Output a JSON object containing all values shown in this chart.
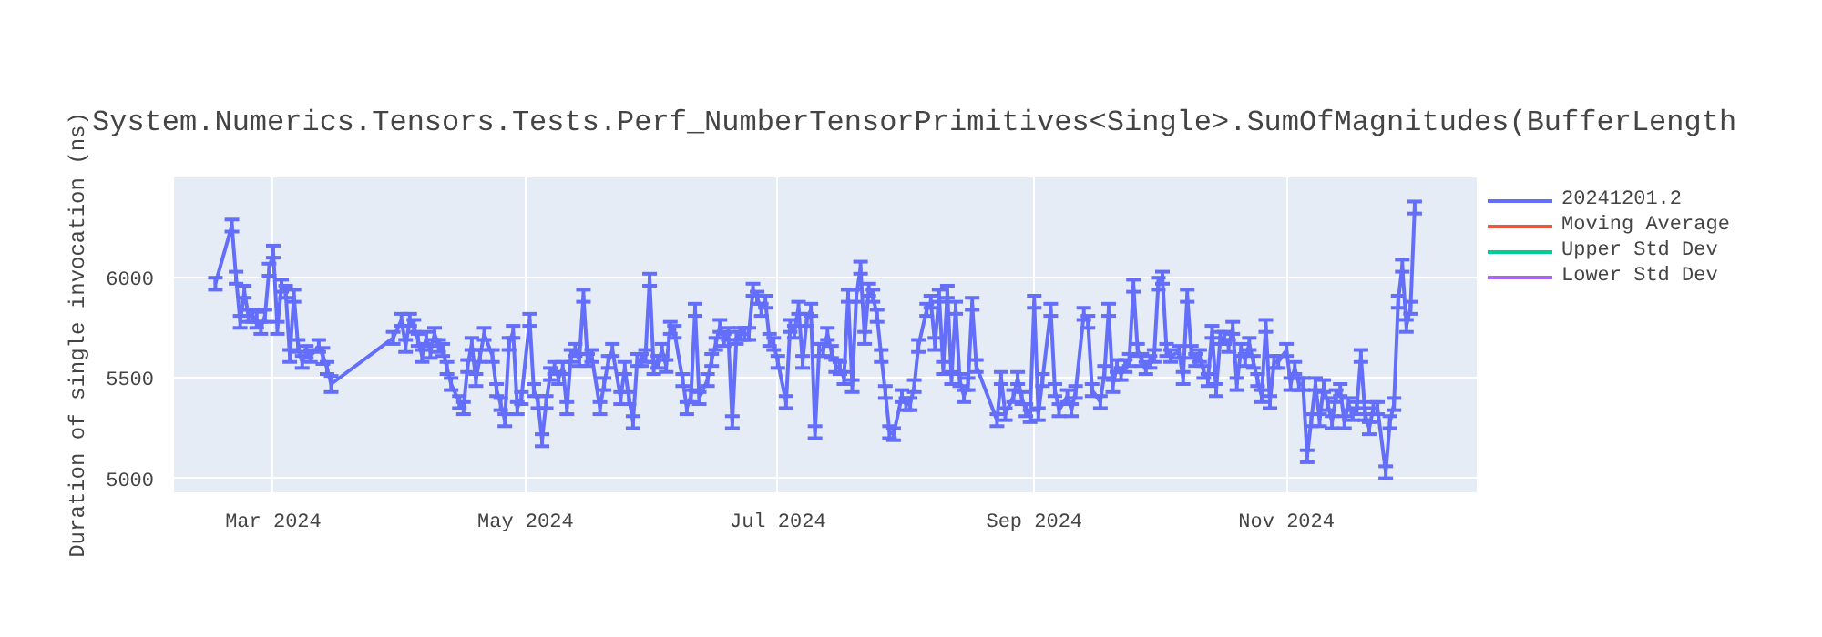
{
  "chart_data": {
    "type": "line",
    "title": "System.Numerics.Tensors.Tests.Perf_NumberTensorPrimitives<Single>.SumOfMagnitudes(BufferLength",
    "ylabel": "Duration of single invocation (ns)",
    "xlim": [
      "2024-02-06",
      "2024-12-17"
    ],
    "xticks": [
      {
        "value": "2024-03-01",
        "label": "Mar 2024"
      },
      {
        "value": "2024-05-01",
        "label": "May 2024"
      },
      {
        "value": "2024-07-01",
        "label": "Jul 2024"
      },
      {
        "value": "2024-09-01",
        "label": "Sep 2024"
      },
      {
        "value": "2024-11-01",
        "label": "Nov 2024"
      }
    ],
    "ylim": [
      4930,
      6500
    ],
    "yticks": [
      5000,
      5500,
      6000
    ],
    "grid": true,
    "legend": "top right",
    "marker": "none",
    "line_style": "solid",
    "x": [
      "2024-02-16",
      "2024-02-20",
      "2024-02-21",
      "2024-02-22",
      "2024-02-23",
      "2024-02-24",
      "2024-02-25",
      "2024-02-26",
      "2024-02-27",
      "2024-02-28",
      "2024-02-29",
      "2024-03-01",
      "2024-03-02",
      "2024-03-03",
      "2024-03-04",
      "2024-03-05",
      "2024-03-06",
      "2024-03-07",
      "2024-03-08",
      "2024-03-09",
      "2024-03-10",
      "2024-03-12",
      "2024-03-13",
      "2024-03-14",
      "2024-03-15",
      "2024-03-30",
      "2024-04-01",
      "2024-04-02",
      "2024-04-03",
      "2024-04-04",
      "2024-04-05",
      "2024-04-06",
      "2024-04-07",
      "2024-04-08",
      "2024-04-09",
      "2024-04-10",
      "2024-04-11",
      "2024-04-12",
      "2024-04-13",
      "2024-04-15",
      "2024-04-16",
      "2024-04-17",
      "2024-04-18",
      "2024-04-19",
      "2024-04-20",
      "2024-04-21",
      "2024-04-23",
      "2024-04-24",
      "2024-04-25",
      "2024-04-26",
      "2024-04-27",
      "2024-04-28",
      "2024-04-29",
      "2024-04-30",
      "2024-05-02",
      "2024-05-03",
      "2024-05-04",
      "2024-05-05",
      "2024-05-06",
      "2024-05-07",
      "2024-05-08",
      "2024-05-09",
      "2024-05-10",
      "2024-05-11",
      "2024-05-12",
      "2024-05-13",
      "2024-05-14",
      "2024-05-15",
      "2024-05-16",
      "2024-05-17",
      "2024-05-19",
      "2024-05-20",
      "2024-05-21",
      "2024-05-22",
      "2024-05-24",
      "2024-05-25",
      "2024-05-26",
      "2024-05-27",
      "2024-05-28",
      "2024-05-29",
      "2024-05-30",
      "2024-05-31",
      "2024-06-01",
      "2024-06-02",
      "2024-06-03",
      "2024-06-04",
      "2024-06-05",
      "2024-06-06",
      "2024-06-08",
      "2024-06-09",
      "2024-06-10",
      "2024-06-11",
      "2024-06-12",
      "2024-06-14",
      "2024-06-15",
      "2024-06-16",
      "2024-06-17",
      "2024-06-18",
      "2024-06-19",
      "2024-06-20",
      "2024-06-21",
      "2024-06-22",
      "2024-06-23",
      "2024-06-24",
      "2024-06-25",
      "2024-06-26",
      "2024-06-27",
      "2024-06-28",
      "2024-06-29",
      "2024-06-30",
      "2024-07-01",
      "2024-07-03",
      "2024-07-04",
      "2024-07-05",
      "2024-07-06",
      "2024-07-07",
      "2024-07-08",
      "2024-07-09",
      "2024-07-10",
      "2024-07-11",
      "2024-07-12",
      "2024-07-13",
      "2024-07-14",
      "2024-07-15",
      "2024-07-16",
      "2024-07-17",
      "2024-07-18",
      "2024-07-19",
      "2024-07-20",
      "2024-07-21",
      "2024-07-22",
      "2024-07-23",
      "2024-07-24",
      "2024-07-25",
      "2024-07-26",
      "2024-07-27",
      "2024-07-28",
      "2024-07-29",
      "2024-07-31",
      "2024-08-01",
      "2024-08-02",
      "2024-08-03",
      "2024-08-04",
      "2024-08-06",
      "2024-08-07",
      "2024-08-08",
      "2024-08-09",
      "2024-08-10",
      "2024-08-11",
      "2024-08-12",
      "2024-08-13",
      "2024-08-14",
      "2024-08-15",
      "2024-08-16",
      "2024-08-17",
      "2024-08-18",
      "2024-08-23",
      "2024-08-24",
      "2024-08-25",
      "2024-08-27",
      "2024-08-28",
      "2024-08-29",
      "2024-08-30",
      "2024-08-31",
      "2024-09-01",
      "2024-09-02",
      "2024-09-03",
      "2024-09-05",
      "2024-09-06",
      "2024-09-07",
      "2024-09-09",
      "2024-09-10",
      "2024-09-11",
      "2024-09-13",
      "2024-09-14",
      "2024-09-15",
      "2024-09-17",
      "2024-09-18",
      "2024-09-19",
      "2024-09-20",
      "2024-09-21",
      "2024-09-22",
      "2024-09-23",
      "2024-09-24",
      "2024-09-25",
      "2024-09-26",
      "2024-09-27",
      "2024-09-28",
      "2024-09-29",
      "2024-09-30",
      "2024-10-01",
      "2024-10-02",
      "2024-10-03",
      "2024-10-04",
      "2024-10-06",
      "2024-10-07",
      "2024-10-08",
      "2024-10-09",
      "2024-10-10",
      "2024-10-11",
      "2024-10-12",
      "2024-10-13",
      "2024-10-14",
      "2024-10-15",
      "2024-10-16",
      "2024-10-17",
      "2024-10-18",
      "2024-10-19",
      "2024-10-20",
      "2024-10-21",
      "2024-10-22",
      "2024-10-23",
      "2024-10-24",
      "2024-10-25",
      "2024-10-26",
      "2024-10-27",
      "2024-10-28",
      "2024-10-29",
      "2024-10-30",
      "2024-11-01",
      "2024-11-02",
      "2024-11-03",
      "2024-11-04",
      "2024-11-05",
      "2024-11-06",
      "2024-11-07",
      "2024-11-08",
      "2024-11-09",
      "2024-11-10",
      "2024-11-11",
      "2024-11-12",
      "2024-11-13",
      "2024-11-14",
      "2024-11-15",
      "2024-11-16",
      "2024-11-17",
      "2024-11-18",
      "2024-11-19",
      "2024-11-20",
      "2024-11-21",
      "2024-11-22",
      "2024-11-23",
      "2024-11-25",
      "2024-11-26",
      "2024-11-27",
      "2024-11-28",
      "2024-11-29",
      "2024-11-30",
      "2024-12-01",
      "2024-12-02"
    ],
    "series": [
      {
        "name": "20241201.2",
        "color": "#636efa",
        "values": [
          5970,
          6260,
          6000,
          5780,
          5930,
          5810,
          5810,
          5790,
          5750,
          5810,
          6040,
          6130,
          5750,
          5960,
          5930,
          5610,
          5910,
          5660,
          5580,
          5630,
          5610,
          5660,
          5610,
          5550,
          5470,
          5700,
          5790,
          5660,
          5790,
          5760,
          5690,
          5610,
          5700,
          5630,
          5720,
          5660,
          5640,
          5550,
          5470,
          5380,
          5350,
          5560,
          5670,
          5490,
          5610,
          5720,
          5610,
          5440,
          5370,
          5290,
          5670,
          5730,
          5350,
          5400,
          5790,
          5440,
          5380,
          5190,
          5380,
          5520,
          5550,
          5500,
          5550,
          5350,
          5610,
          5640,
          5590,
          5910,
          5590,
          5610,
          5350,
          5470,
          5580,
          5640,
          5400,
          5550,
          5400,
          5280,
          5590,
          5590,
          5610,
          5990,
          5550,
          5580,
          5640,
          5560,
          5750,
          5730,
          5490,
          5350,
          5410,
          5840,
          5400,
          5490,
          5590,
          5670,
          5760,
          5690,
          5720,
          5280,
          5700,
          5720,
          5720,
          5720,
          5940,
          5900,
          5840,
          5880,
          5690,
          5670,
          5580,
          5380,
          5760,
          5730,
          5850,
          5580,
          5790,
          5840,
          5230,
          5640,
          5640,
          5720,
          5630,
          5560,
          5550,
          5500,
          5910,
          5460,
          5910,
          6050,
          5700,
          5940,
          5910,
          5810,
          5610,
          5430,
          5230,
          5220,
          5410,
          5370,
          5370,
          5460,
          5660,
          5840,
          5880,
          5670,
          5910,
          5550,
          5930,
          5500,
          5850,
          5490,
          5410,
          5470,
          5870,
          5560,
          5290,
          5500,
          5320,
          5410,
          5500,
          5400,
          5340,
          5310,
          5880,
          5320,
          5490,
          5840,
          5440,
          5340,
          5410,
          5340,
          5430,
          5820,
          5780,
          5440,
          5380,
          5530,
          5840,
          5460,
          5560,
          5520,
          5560,
          5590,
          5960,
          5640,
          5590,
          5550,
          5580,
          5610,
          5970,
          6000,
          5640,
          5610,
          5630,
          5500,
          5910,
          5630,
          5590,
          5610,
          5530,
          5490,
          5730,
          5440,
          5700,
          5700,
          5660,
          5750,
          5470,
          5640,
          5590,
          5670,
          5580,
          5490,
          5410,
          5760,
          5380,
          5580,
          5580,
          5640,
          5470,
          5550,
          5470,
          5470,
          5110,
          5290,
          5470,
          5290,
          5460,
          5370,
          5280,
          5410,
          5440,
          5280,
          5370,
          5320,
          5350,
          5610,
          5320,
          5250,
          5350,
          5350,
          5030,
          5280,
          5370,
          5880,
          6060,
          5760,
          5850,
          6350
        ],
        "errors": [
          30,
          30,
          30,
          30,
          30,
          30,
          30,
          40,
          30,
          30,
          30,
          30,
          30,
          30,
          30,
          30,
          30,
          30,
          30,
          30,
          30,
          30,
          40,
          30,
          40,
          30,
          30,
          30,
          30,
          30,
          30,
          30,
          30,
          30,
          30,
          30,
          30,
          30,
          30,
          30,
          30,
          30,
          30,
          30,
          30,
          30,
          30,
          30,
          30,
          30,
          30,
          30,
          30,
          30,
          30,
          30,
          30,
          30,
          30,
          30,
          30,
          30,
          30,
          30,
          30,
          30,
          30,
          30,
          30,
          30,
          30,
          30,
          30,
          30,
          30,
          30,
          30,
          30,
          30,
          30,
          30,
          30,
          30,
          30,
          30,
          30,
          30,
          30,
          30,
          30,
          30,
          30,
          30,
          30,
          30,
          30,
          30,
          30,
          30,
          30,
          30,
          30,
          30,
          30,
          30,
          30,
          30,
          30,
          30,
          30,
          30,
          30,
          30,
          30,
          30,
          30,
          30,
          30,
          30,
          30,
          30,
          30,
          30,
          30,
          30,
          30,
          30,
          30,
          30,
          30,
          30,
          30,
          30,
          30,
          30,
          30,
          30,
          30,
          30,
          30,
          30,
          30,
          30,
          30,
          30,
          30,
          30,
          30,
          30,
          30,
          30,
          30,
          30,
          30,
          30,
          30,
          30,
          30,
          30,
          30,
          30,
          30,
          30,
          30,
          30,
          30,
          30,
          30,
          30,
          30,
          30,
          30,
          30,
          30,
          30,
          30,
          30,
          30,
          30,
          30,
          30,
          30,
          30,
          30,
          30,
          30,
          30,
          30,
          30,
          30,
          30,
          30,
          30,
          30,
          30,
          30,
          30,
          30,
          30,
          30,
          30,
          30,
          30,
          30,
          30,
          30,
          30,
          30,
          30,
          30,
          30,
          30,
          30,
          30,
          30,
          30,
          30,
          30,
          30,
          30,
          30,
          30,
          30,
          30,
          30,
          30,
          30,
          30,
          30,
          30,
          30,
          30,
          30,
          30,
          30,
          30,
          30,
          30,
          30,
          30,
          30,
          30,
          30,
          30,
          30,
          30,
          30,
          30,
          30,
          30
        ]
      },
      {
        "name": "Moving Average",
        "color": "#ef553b",
        "values": [
          null,
          null,
          null,
          null,
          null,
          null,
          null,
          null,
          null,
          null,
          null,
          null,
          null,
          null,
          null,
          null,
          null,
          null,
          null,
          null,
          null,
          null,
          null,
          null,
          null,
          null,
          null,
          null,
          null,
          null,
          null,
          null,
          null,
          null,
          null,
          null,
          null,
          null,
          null,
          null,
          null,
          null,
          null,
          null,
          null,
          null,
          null,
          null,
          null,
          null,
          null,
          null,
          null,
          null,
          null,
          null,
          null,
          null,
          null,
          null,
          null,
          null,
          null,
          null,
          null,
          null,
          null,
          null,
          null,
          null,
          null,
          null,
          null,
          null,
          null,
          null,
          null,
          null,
          null,
          null,
          null,
          null,
          null,
          null,
          null,
          null,
          null,
          null,
          null,
          null,
          null,
          null,
          null,
          null,
          null,
          null,
          null,
          null,
          null,
          null,
          null,
          null,
          null,
          null,
          null,
          null,
          null,
          null,
          null,
          null,
          null,
          null,
          null,
          null,
          null,
          null,
          null,
          null,
          null,
          null,
          null,
          null,
          null,
          null,
          null,
          null,
          null,
          null,
          null,
          null,
          null,
          null,
          null,
          null,
          null,
          null,
          null,
          null,
          null,
          null,
          null,
          null,
          null,
          null,
          null,
          null,
          null,
          null,
          null,
          null,
          null,
          null,
          null,
          null,
          null,
          null,
          null,
          null,
          null,
          null,
          null,
          null,
          null,
          null,
          null,
          null,
          null,
          null,
          null,
          null,
          null,
          null,
          null,
          null,
          null,
          null,
          null,
          null,
          null,
          null,
          null,
          null,
          null,
          null,
          null,
          null,
          null,
          null,
          null,
          null,
          null,
          null,
          null,
          null,
          null,
          null,
          null,
          null,
          null,
          null,
          null,
          null,
          null,
          null,
          null,
          null,
          null,
          null,
          null,
          null,
          null,
          null,
          null,
          null,
          null,
          null,
          null,
          null,
          null,
          null,
          null,
          null,
          null,
          null,
          null,
          null,
          null,
          null,
          null,
          null,
          null,
          null,
          null,
          null,
          null,
          null,
          null,
          null,
          null,
          null,
          null,
          null,
          null,
          null,
          null,
          null,
          null,
          null,
          null,
          null
        ]
      },
      {
        "name": "Upper Std Dev",
        "color": "#00cc96",
        "values": [
          null,
          null,
          null,
          null,
          null,
          null,
          null,
          null,
          null,
          null,
          null,
          null,
          null,
          null,
          null,
          null,
          null,
          null,
          null,
          null,
          null,
          null,
          null,
          null,
          null,
          null,
          null,
          null,
          null,
          null,
          null,
          null,
          null,
          null,
          null,
          null,
          null,
          null,
          null,
          null,
          null,
          null,
          null,
          null,
          null,
          null,
          null,
          null,
          null,
          null,
          null,
          null,
          null,
          null,
          null,
          null,
          null,
          null,
          null,
          null,
          null,
          null,
          null,
          null,
          null,
          null,
          null,
          null,
          null,
          null,
          null,
          null,
          null,
          null,
          null,
          null,
          null,
          null,
          null,
          null,
          null,
          null,
          null,
          null,
          null,
          null,
          null,
          null,
          null,
          null,
          null,
          null,
          null,
          null,
          null,
          null,
          null,
          null,
          null,
          null,
          null,
          null,
          null,
          null,
          null,
          null,
          null,
          null,
          null,
          null,
          null,
          null,
          null,
          null,
          null,
          null,
          null,
          null,
          null,
          null,
          null,
          null,
          null,
          null,
          null,
          null,
          null,
          null,
          null,
          null,
          null,
          null,
          null,
          null,
          null,
          null,
          null,
          null,
          null,
          null,
          null,
          null,
          null,
          null,
          null,
          null,
          null,
          null,
          null,
          null,
          null,
          null,
          null,
          null,
          null,
          null,
          null,
          null,
          null,
          null,
          null,
          null,
          null,
          null,
          null,
          null,
          null,
          null,
          null,
          null,
          null,
          null,
          null,
          null,
          null,
          null,
          null,
          null,
          null,
          null,
          null,
          null,
          null,
          null,
          null,
          null,
          null,
          null,
          null,
          null,
          null,
          null,
          null,
          null,
          null,
          null,
          null,
          null,
          null,
          null,
          null,
          null,
          null,
          null,
          null,
          null,
          null,
          null,
          null,
          null,
          null,
          null,
          null,
          null,
          null,
          null,
          null,
          null,
          null,
          null,
          null,
          null,
          null,
          null,
          null,
          null,
          null,
          null,
          null,
          null,
          null,
          null,
          null,
          null,
          null,
          null,
          null,
          null,
          null,
          null,
          null,
          null,
          null,
          null,
          null,
          null,
          null,
          null,
          null,
          null
        ]
      },
      {
        "name": "Lower Std Dev",
        "color": "#ab63fa",
        "values": [
          null,
          null,
          null,
          null,
          null,
          null,
          null,
          null,
          null,
          null,
          null,
          null,
          null,
          null,
          null,
          null,
          null,
          null,
          null,
          null,
          null,
          null,
          null,
          null,
          null,
          null,
          null,
          null,
          null,
          null,
          null,
          null,
          null,
          null,
          null,
          null,
          null,
          null,
          null,
          null,
          null,
          null,
          null,
          null,
          null,
          null,
          null,
          null,
          null,
          null,
          null,
          null,
          null,
          null,
          null,
          null,
          null,
          null,
          null,
          null,
          null,
          null,
          null,
          null,
          null,
          null,
          null,
          null,
          null,
          null,
          null,
          null,
          null,
          null,
          null,
          null,
          null,
          null,
          null,
          null,
          null,
          null,
          null,
          null,
          null,
          null,
          null,
          null,
          null,
          null,
          null,
          null,
          null,
          null,
          null,
          null,
          null,
          null,
          null,
          null,
          null,
          null,
          null,
          null,
          null,
          null,
          null,
          null,
          null,
          null,
          null,
          null,
          null,
          null,
          null,
          null,
          null,
          null,
          null,
          null,
          null,
          null,
          null,
          null,
          null,
          null,
          null,
          null,
          null,
          null,
          null,
          null,
          null,
          null,
          null,
          null,
          null,
          null,
          null,
          null,
          null,
          null,
          null,
          null,
          null,
          null,
          null,
          null,
          null,
          null,
          null,
          null,
          null,
          null,
          null,
          null,
          null,
          null,
          null,
          null,
          null,
          null,
          null,
          null,
          null,
          null,
          null,
          null,
          null,
          null,
          null,
          null,
          null,
          null,
          null,
          null,
          null,
          null,
          null,
          null,
          null,
          null,
          null,
          null,
          null,
          null,
          null,
          null,
          null,
          null,
          null,
          null,
          null,
          null,
          null,
          null,
          null,
          null,
          null,
          null,
          null,
          null,
          null,
          null,
          null,
          null,
          null,
          null,
          null,
          null,
          null,
          null,
          null,
          null,
          null,
          null,
          null,
          null,
          null,
          null,
          null,
          null,
          null,
          null,
          null,
          null,
          null,
          null,
          null,
          null,
          null,
          null,
          null,
          null,
          null,
          null,
          null,
          null,
          null,
          null,
          null,
          null,
          null,
          null,
          null,
          null,
          null,
          null,
          null,
          null
        ]
      }
    ]
  }
}
